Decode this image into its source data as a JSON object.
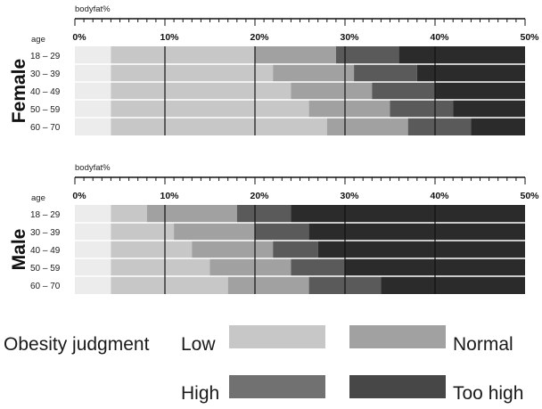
{
  "chart_data": [
    {
      "type": "bar",
      "orientation": "horizontal-stacked-ranges",
      "group_label": "Female",
      "xlabel": "bodyfat%",
      "row_header": "age",
      "x_ticks": [
        "0%",
        "10%",
        "20%",
        "30%",
        "40%",
        "50%"
      ],
      "xlim": [
        0,
        50
      ],
      "categories": [
        "18 – 29",
        "30 – 39",
        "40 – 49",
        "50 – 59",
        "60 – 70"
      ],
      "boundaries": [
        [
          4,
          20,
          29,
          36
        ],
        [
          4,
          22,
          31,
          38
        ],
        [
          4,
          24,
          33,
          40
        ],
        [
          4,
          26,
          35,
          42
        ],
        [
          4,
          28,
          37,
          44
        ]
      ],
      "segment_order": [
        "Low",
        "Normal",
        "High",
        "Too high"
      ]
    },
    {
      "type": "bar",
      "orientation": "horizontal-stacked-ranges",
      "group_label": "Male",
      "xlabel": "bodyfat%",
      "row_header": "age",
      "x_ticks": [
        "0%",
        "10%",
        "20%",
        "30%",
        "40%",
        "50%"
      ],
      "xlim": [
        0,
        50
      ],
      "categories": [
        "18 – 29",
        "30 – 39",
        "40 – 49",
        "50 – 59",
        "60 – 70"
      ],
      "boundaries": [
        [
          4,
          8,
          18,
          24
        ],
        [
          4,
          11,
          20,
          26
        ],
        [
          4,
          13,
          22,
          27
        ],
        [
          4,
          15,
          24,
          30
        ],
        [
          4,
          17,
          26,
          34
        ]
      ],
      "segment_order": [
        "Low",
        "Normal",
        "High",
        "Too high"
      ]
    }
  ],
  "legend": {
    "title": "Obesity judgment",
    "items": [
      {
        "label": "Low",
        "color": "#c7c7c7"
      },
      {
        "label": "Normal",
        "color": "#a1a1a1"
      },
      {
        "label": "High",
        "color": "#717171"
      },
      {
        "label": "Too high",
        "color": "#474747"
      }
    ]
  },
  "colors": {
    "base": "#ececec",
    "bands": [
      "#c7c7c7",
      "#a1a1a1",
      "#5a5a5a",
      "#2b2b2b"
    ]
  }
}
